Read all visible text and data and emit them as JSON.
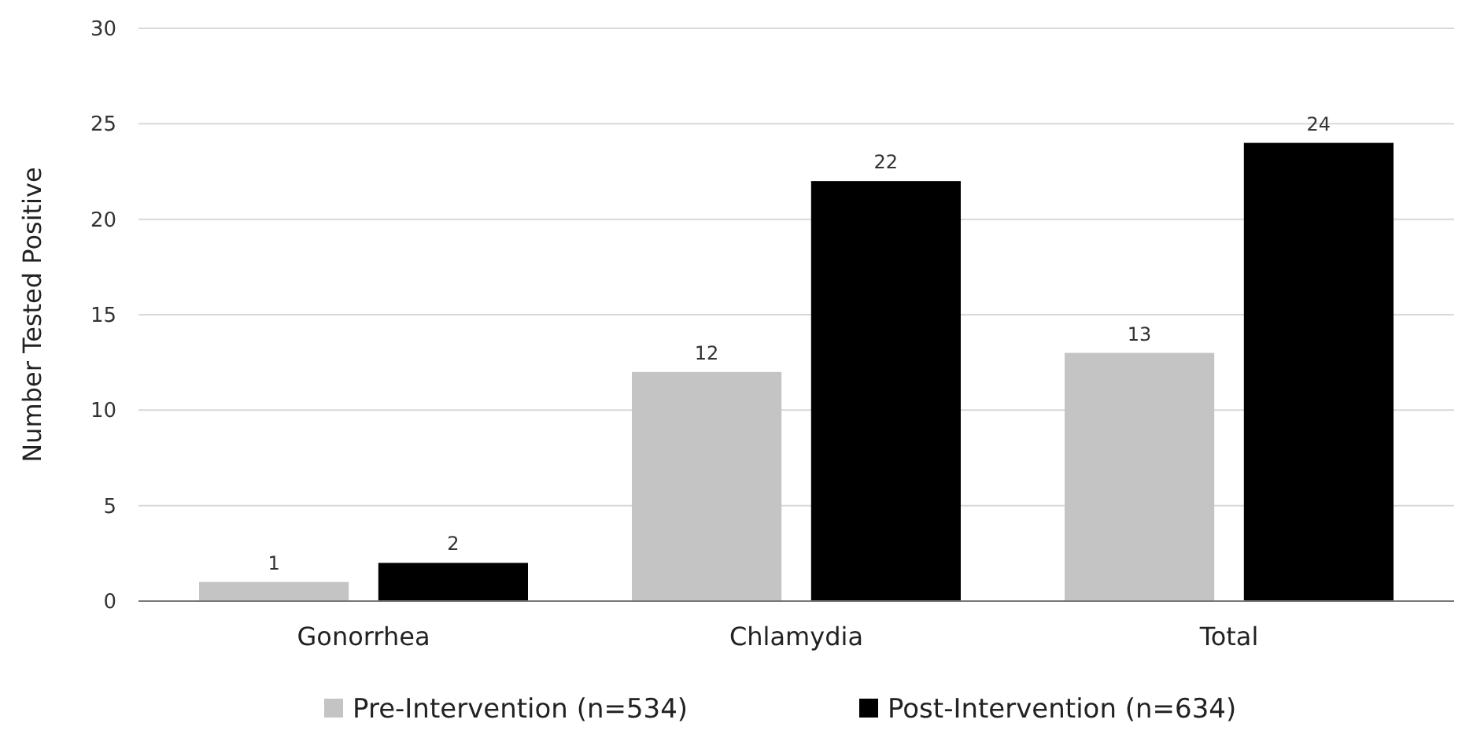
{
  "chart_data": {
    "type": "bar",
    "ylabel": "Number Tested Positive",
    "categories": [
      "Gonorrhea",
      "Chlamydia",
      "Total"
    ],
    "series": [
      {
        "name": "Pre-Intervention (n=534)",
        "color": "#c4c4c4",
        "values": [
          1,
          12,
          13
        ]
      },
      {
        "name": "Post-Intervention (n=634)",
        "color": "#000000",
        "values": [
          2,
          22,
          24
        ]
      }
    ],
    "ylim": [
      0,
      30
    ],
    "yticks": [
      0,
      5,
      10,
      15,
      20,
      25,
      30
    ],
    "grid": "y",
    "legend": "bottom",
    "data_labels": true
  }
}
